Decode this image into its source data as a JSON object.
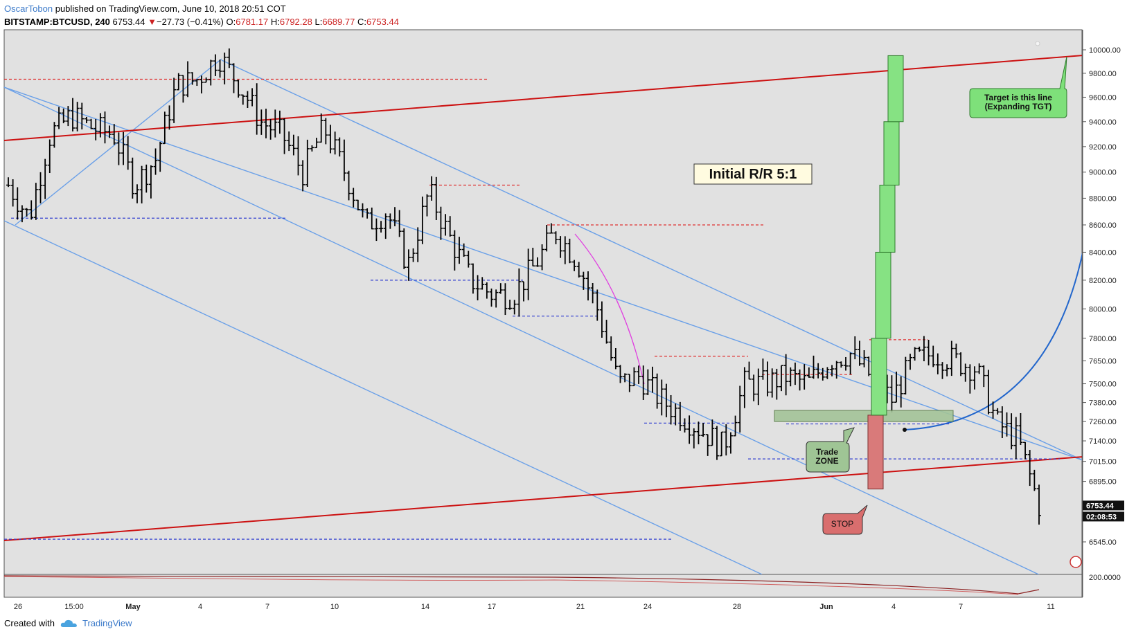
{
  "header": {
    "author": "OscarTobon",
    "published_text": "published on TradingView.com, June 10, 2018 20:51 COT",
    "symbol": "BITSTAMP:BTCUSD, 240",
    "last": "6753.44",
    "change_arrow": "▼",
    "change": "−27.73 (−0.41%)",
    "o_label": "O:",
    "o_value": "6781.17",
    "h_label": "H:",
    "h_value": "6792.28",
    "l_label": "L:",
    "l_value": "6689.77",
    "c_label": "C:",
    "c_value": "6753.44"
  },
  "footer": {
    "created_with": "Created with",
    "brand": "TradingView",
    "icon": "tradingview-cloud-icon"
  },
  "colors": {
    "plot_bg": "#e1e1e1",
    "candle": "#000000",
    "channel": "#6aa0e8",
    "trend": "#cc1111",
    "res_dash": "#e03030",
    "sup_dash": "#3340d0",
    "target_box": "#86e283",
    "stop_box": "#d97a7a",
    "zone_box": "#a3c498",
    "curve": "#2266cc",
    "magenta": "#e040e0"
  },
  "chart_data": {
    "type": "candlestick",
    "timeframe": "240",
    "y_scale": "log",
    "y_ticks": [
      "10000.00",
      "9800.00",
      "9600.00",
      "9400.00",
      "9200.00",
      "9000.00",
      "8800.00",
      "8600.00",
      "8400.00",
      "8200.00",
      "8000.00",
      "7800.00",
      "7650.00",
      "7500.00",
      "7380.00",
      "7260.00",
      "7140.00",
      "7015.00",
      "6895.00",
      "6545.00"
    ],
    "x_ticks": [
      "26",
      "15:00",
      "May",
      "4",
      "7",
      "10",
      "14",
      "17",
      "21",
      "24",
      "28",
      "Jun",
      "4",
      "7",
      "11"
    ],
    "price_label": "6753.44",
    "countdown_label": "02:08:53",
    "indicator_tick": "200.0000",
    "price_path": [
      [
        "Apr 24",
        8900
      ],
      [
        "Apr 26",
        8650
      ],
      [
        "Apr 27",
        9300
      ],
      [
        "Apr 28",
        9450
      ],
      [
        "Apr 29",
        9350
      ],
      [
        "Apr 30",
        9300
      ],
      [
        "May 1",
        8900
      ],
      [
        "May 2",
        9100
      ],
      [
        "May 3",
        9700
      ],
      [
        "May 4",
        9750
      ],
      [
        "May 5",
        9950
      ],
      [
        "May 6",
        9700
      ],
      [
        "May 7",
        9400
      ],
      [
        "May 8",
        9300
      ],
      [
        "May 9",
        9000
      ],
      [
        "May 10",
        9350
      ],
      [
        "May 11",
        9000
      ],
      [
        "May 12",
        8600
      ],
      [
        "May 13",
        8700
      ],
      [
        "May 14",
        8300
      ],
      [
        "May 15",
        8850
      ],
      [
        "May 16",
        8500
      ],
      [
        "May 17",
        8200
      ],
      [
        "May 18",
        8100
      ],
      [
        "May 19",
        8100
      ],
      [
        "May 20",
        8300
      ],
      [
        "May 21",
        8550
      ],
      [
        "May 22",
        8350
      ],
      [
        "May 23",
        8000
      ],
      [
        "May 24",
        7500
      ],
      [
        "May 25",
        7550
      ],
      [
        "May 26",
        7400
      ],
      [
        "May 27",
        7300
      ],
      [
        "May 28",
        7200
      ],
      [
        "May 29",
        7100
      ],
      [
        "May 30",
        7500
      ],
      [
        "May 31",
        7500
      ],
      [
        "Jun 1",
        7550
      ],
      [
        "Jun 2",
        7500
      ],
      [
        "Jun 3",
        7650
      ],
      [
        "Jun 4",
        7700
      ],
      [
        "Jun 5",
        7550
      ],
      [
        "Jun 6",
        7400
      ],
      [
        "Jun 7",
        7650
      ],
      [
        "Jun 8",
        7700
      ],
      [
        "Jun 9",
        7650
      ],
      [
        "Jun 10",
        7600
      ],
      [
        "Jun 10b",
        7250
      ],
      [
        "Jun 10c",
        7150
      ],
      [
        "Jun 10d",
        6753.44
      ]
    ],
    "horizontal_levels": [
      {
        "price": 9750,
        "style": "resistance"
      },
      {
        "price": 8900,
        "style": "resistance"
      },
      {
        "price": 8600,
        "style": "resistance"
      },
      {
        "price": 7680,
        "style": "resistance"
      },
      {
        "price": 7560,
        "style": "resistance"
      },
      {
        "price": 7790,
        "style": "resistance"
      },
      {
        "price": 8650,
        "style": "support"
      },
      {
        "price": 8200,
        "style": "support"
      },
      {
        "price": 7950,
        "style": "support"
      },
      {
        "price": 7250,
        "style": "support"
      },
      {
        "price": 7030,
        "style": "support"
      },
      {
        "price": 6560,
        "style": "support"
      }
    ],
    "trade_setup": {
      "zone_low": 7260,
      "zone_high": 7330,
      "stop": 6850,
      "target": 9950,
      "risk_reward": "5:1"
    },
    "annotations": {
      "rr_text": "Initial R/R 5:1",
      "target_line1": "Target is this line",
      "target_line2": "(Expanding TGT)",
      "zone_line1": "Trade",
      "zone_line2": "ZONE",
      "stop_text": "STOP"
    }
  }
}
